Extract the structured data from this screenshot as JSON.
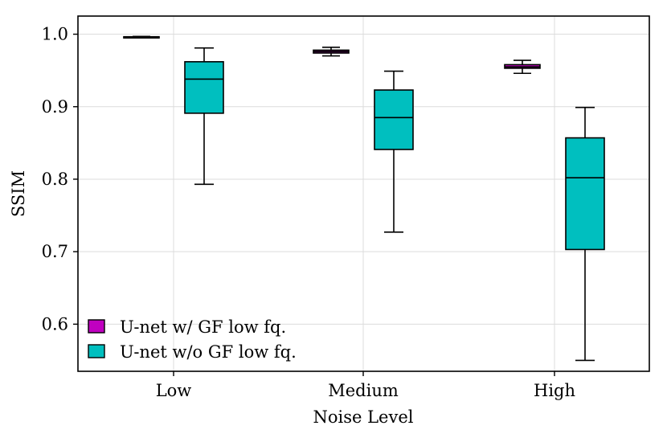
{
  "chart_data": {
    "type": "boxplot",
    "xlabel": "Noise Level",
    "ylabel": "SSIM",
    "categories": [
      "Low",
      "Medium",
      "High"
    ],
    "ylim": [
      0.535,
      1.025
    ],
    "yticks": [
      0.6,
      0.7,
      0.8,
      0.9,
      1.0
    ],
    "ytick_labels": [
      "0.6",
      "0.7",
      "0.8",
      "0.9",
      "1.0"
    ],
    "grid": true,
    "legend_position": "bottom-left",
    "series": [
      {
        "name": "U-net w/ GF low fq.",
        "color": "#c000c0",
        "boxes": [
          {
            "whislo": 0.995,
            "q1": 0.9955,
            "med": 0.996,
            "q3": 0.9965,
            "whishi": 0.997
          },
          {
            "whislo": 0.97,
            "q1": 0.974,
            "med": 0.976,
            "q3": 0.978,
            "whishi": 0.982
          },
          {
            "whislo": 0.946,
            "q1": 0.953,
            "med": 0.955,
            "q3": 0.958,
            "whishi": 0.964
          }
        ]
      },
      {
        "name": "U-net w/o GF low fq.",
        "color": "#00bfbf",
        "boxes": [
          {
            "whislo": 0.793,
            "q1": 0.891,
            "med": 0.938,
            "q3": 0.962,
            "whishi": 0.981
          },
          {
            "whislo": 0.727,
            "q1": 0.841,
            "med": 0.885,
            "q3": 0.923,
            "whishi": 0.949
          },
          {
            "whislo": 0.55,
            "q1": 0.703,
            "med": 0.802,
            "q3": 0.857,
            "whishi": 0.899
          }
        ]
      }
    ]
  }
}
